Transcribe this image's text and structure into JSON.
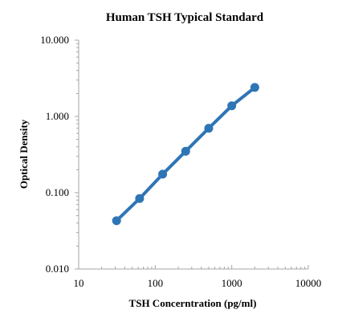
{
  "chart_data": {
    "type": "line",
    "title": "Human TSH Typical Standard",
    "xlabel": "TSH Concerntration (pg/ml)",
    "ylabel": "Optical Density",
    "x_scale": "log",
    "y_scale": "log",
    "xlim": [
      10,
      10000
    ],
    "ylim": [
      0.01,
      10
    ],
    "x_ticks": [
      "10",
      "100",
      "1000",
      "10000"
    ],
    "y_ticks": [
      "0.010",
      "0.100",
      "1.000",
      "10.000"
    ],
    "grid": false,
    "legend": "none",
    "series": [
      {
        "color": "#2e75b6",
        "x": [
          31.25,
          62.5,
          125,
          250,
          500,
          1000,
          2000
        ],
        "y": [
          0.043,
          0.084,
          0.175,
          0.35,
          0.7,
          1.38,
          2.4
        ]
      }
    ]
  }
}
